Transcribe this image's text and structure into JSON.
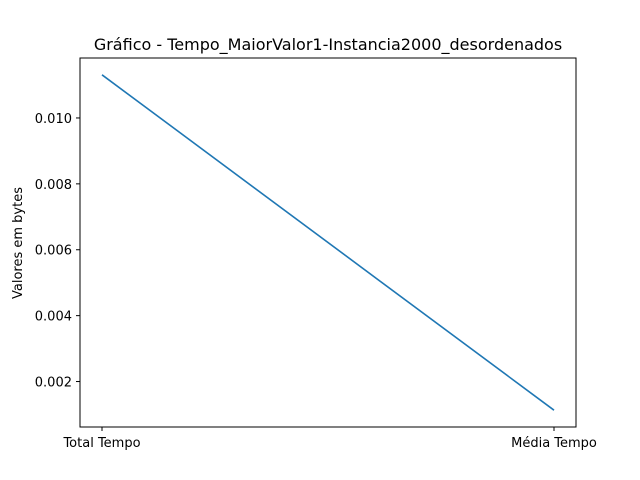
{
  "chart_data": {
    "type": "line",
    "title": "Gráfico - Tempo_MaiorValor1-Instancia2000_desordenados",
    "xlabel": "",
    "ylabel": "Valores em bytes",
    "categories": [
      "Total Tempo",
      "Média Tempo"
    ],
    "series": [
      {
        "values": [
          0.01131,
          0.00113
        ],
        "color": "#1f77b4"
      }
    ],
    "ylim": [
      0.00062,
      0.01182
    ],
    "yticks": [
      0.002,
      0.004,
      0.006,
      0.008,
      0.01
    ],
    "ytick_labels": [
      "0.002",
      "0.004",
      "0.006",
      "0.008",
      "0.010"
    ],
    "grid": false,
    "legend": "none"
  }
}
